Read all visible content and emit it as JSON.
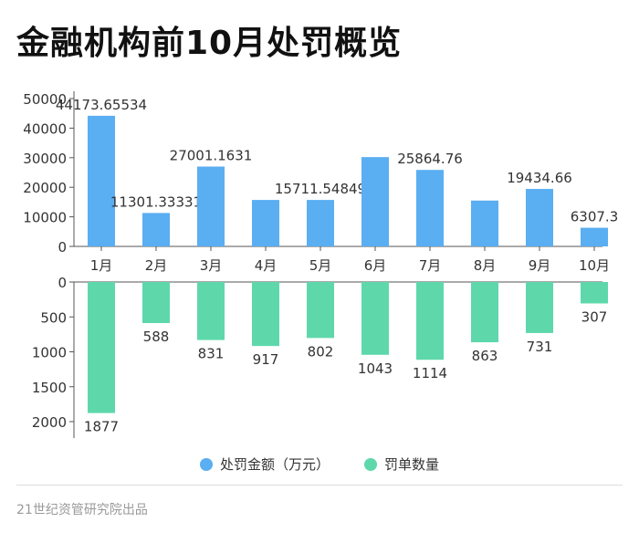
{
  "title": "金融机构前10月处罚概览",
  "source": "21世纪资管研究院出品",
  "colors": {
    "amount": "#5aaef2",
    "count": "#5ed8ab",
    "axis": "#555555",
    "text": "#333333"
  },
  "chart_data": {
    "type": "bar",
    "categories": [
      "1月",
      "2月",
      "3月",
      "4月",
      "5月",
      "6月",
      "7月",
      "8月",
      "9月",
      "10月"
    ],
    "series": [
      {
        "name": "处罚金额（万元）",
        "values": [
          44173.65534,
          11301.33331,
          27001.1631,
          15711.54849,
          15711.54849,
          30200,
          25864.76,
          15500,
          19434.66,
          6307.3
        ],
        "labels": [
          "44173.65534",
          "11301.33331",
          "27001.1631",
          "",
          "15711.54849",
          "",
          "25864.76",
          "",
          "19434.66",
          "6307.3"
        ],
        "ylim": [
          0,
          50000
        ],
        "yticks": [
          "0",
          "10000",
          "20000",
          "30000",
          "40000",
          "50000"
        ]
      },
      {
        "name": "罚单数量",
        "values": [
          1877,
          588,
          831,
          917,
          802,
          1043,
          1114,
          863,
          731,
          307
        ],
        "labels": [
          "1877",
          "588",
          "831",
          "917",
          "802",
          "1043",
          "1114",
          "863",
          "731",
          "307"
        ],
        "ylim": [
          0,
          2000
        ],
        "yticks": [
          "0",
          "500",
          "1000",
          "1500",
          "2000"
        ],
        "inverted": true
      }
    ],
    "legend_position": "bottom"
  }
}
